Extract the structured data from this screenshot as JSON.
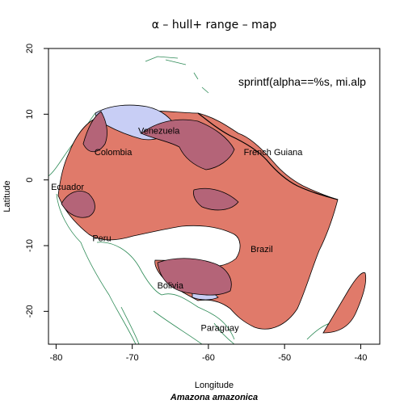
{
  "chart_data": {
    "type": "map",
    "title": "α – hull+ range – map",
    "subtitle": "Amazona amazonica",
    "annotation": "sprintf(alpha==%s, mi.alp",
    "xlabel": "Longitude",
    "ylabel": "Latitude",
    "xlim": [
      -81,
      -37.5
    ],
    "ylim": [
      -25,
      20
    ],
    "x_ticks": [
      -80,
      -70,
      -60,
      -50,
      -40
    ],
    "y_ticks": [
      -20,
      -10,
      0,
      10,
      20
    ],
    "country_labels": [
      {
        "name": "Venezuela",
        "lon": -66.5,
        "lat": 7
      },
      {
        "name": "Colombia",
        "lon": -72.5,
        "lat": 3.8
      },
      {
        "name": "French Guiana",
        "lon": -51.5,
        "lat": 3.8
      },
      {
        "name": "Ecuador",
        "lon": -78.5,
        "lat": -1.5
      },
      {
        "name": "Peru",
        "lon": -74,
        "lat": -9.3
      },
      {
        "name": "Brazil",
        "lon": -53,
        "lat": -11
      },
      {
        "name": "Bolivia",
        "lon": -65,
        "lat": -16.5
      },
      {
        "name": "Paraguay",
        "lon": -58.5,
        "lat": -23
      }
    ],
    "colors": {
      "range_fill": "#e07a6a",
      "hull_fill": "#c8cef5",
      "overlap_fill": "#b46478",
      "borders": "#2e8b57",
      "coastline": "#000000"
    },
    "legend": "none",
    "grid": false
  }
}
